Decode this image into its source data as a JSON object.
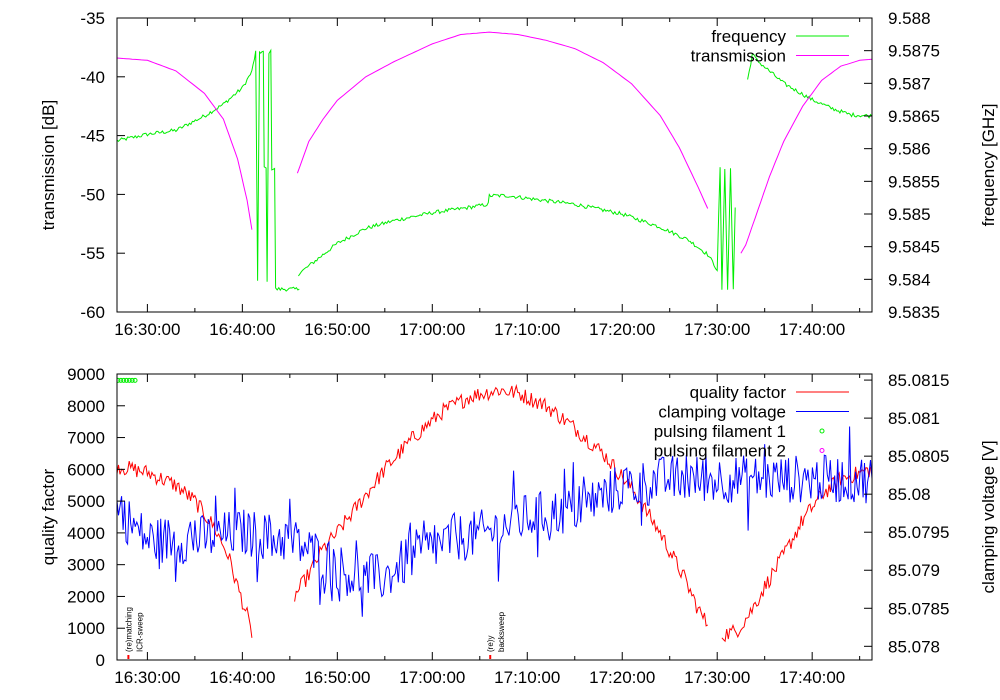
{
  "chart_data": [
    {
      "type": "line",
      "title": "",
      "xlabel": "",
      "ylabel": "transmission [dB]",
      "y2label": "frequency [GHz]",
      "x_unit": "minutes after 16:00",
      "xlim": [
        26.8,
        106.3
      ],
      "ylim": [
        -60,
        -35
      ],
      "y2lim": [
        9.5835,
        9.588
      ],
      "xticks": [
        "16:30:00",
        "16:40:00",
        "16:50:00",
        "17:00:00",
        "17:10:00",
        "17:20:00",
        "17:30:00",
        "17:40:00"
      ],
      "xtick_values": [
        30,
        40,
        50,
        60,
        70,
        80,
        90,
        100
      ],
      "yticks": [
        "-35",
        "-40",
        "-45",
        "-50",
        "-55",
        "-60"
      ],
      "ytick_values": [
        -35,
        -40,
        -45,
        -50,
        -55,
        -60
      ],
      "y2ticks": [
        "9.588",
        "9.5875",
        "9.587",
        "9.5865",
        "9.586",
        "9.5855",
        "9.585",
        "9.5845",
        "9.584",
        "9.5835"
      ],
      "y2tick_values": [
        9.588,
        9.5875,
        9.587,
        9.5865,
        9.586,
        9.5855,
        9.585,
        9.5845,
        9.584,
        9.5835
      ],
      "legend_position": "top-right",
      "series": [
        {
          "name": "frequency",
          "axis": "y2",
          "color": "#00ee00",
          "noise": 3e-05,
          "segments": [
            [
              [
                26.8,
                9.58612
              ],
              [
                30,
                9.58622
              ],
              [
                33,
                9.58628
              ],
              [
                36,
                9.5865
              ],
              [
                38,
                9.58668
              ],
              [
                40,
                9.58693
              ],
              [
                41,
                9.58718
              ],
              [
                41.4,
                9.58748
              ],
              [
                41.6,
                9.58395
              ],
              [
                41.8,
                9.58748
              ],
              [
                42.2,
                9.58748
              ],
              [
                42.3,
                9.5857
              ],
              [
                42.5,
                9.5857
              ],
              [
                42.6,
                9.58395
              ],
              [
                42.8,
                9.58748
              ],
              [
                43,
                9.58748
              ],
              [
                43.1,
                9.5857
              ],
              [
                43.4,
                9.5857
              ],
              [
                43.5,
                9.58385
              ],
              [
                44,
                9.58385
              ],
              [
                46,
                9.58385
              ]
            ],
            [
              [
                45.9,
                9.58408
              ],
              [
                48,
                9.58432
              ],
              [
                50,
                9.58455
              ],
              [
                53,
                9.58478
              ],
              [
                56,
                9.5849
              ],
              [
                60,
                9.58502
              ],
              [
                63,
                9.58508
              ],
              [
                65.9,
                9.58515
              ],
              [
                66,
                9.58528
              ],
              [
                68,
                9.58528
              ],
              [
                70,
                9.58524
              ],
              [
                75,
                9.58515
              ],
              [
                80,
                9.585
              ],
              [
                84,
                9.5848
              ],
              [
                87,
                9.5846
              ],
              [
                89,
                9.58438
              ],
              [
                90,
                9.58415
              ],
              [
                90.3,
                9.5857
              ],
              [
                90.5,
                9.58385
              ],
              [
                90.8,
                9.5857
              ],
              [
                91.1,
                9.58385
              ],
              [
                91.4,
                9.5857
              ],
              [
                91.7,
                9.58385
              ],
              [
                91.9,
                9.5851
              ]
            ],
            [
              [
                93.2,
                9.58705
              ],
              [
                93.7,
                9.58745
              ],
              [
                94.2,
                9.58735
              ],
              [
                95,
                9.58725
              ],
              [
                97,
                9.587
              ],
              [
                100,
                9.58675
              ],
              [
                102,
                9.58662
              ],
              [
                104,
                9.58652
              ],
              [
                106.3,
                9.5865
              ]
            ]
          ]
        },
        {
          "name": "transmission",
          "axis": "y",
          "color": "#ff00ff",
          "noise": 0,
          "segments": [
            [
              [
                26.8,
                -38.4
              ],
              [
                30,
                -38.6
              ],
              [
                33,
                -39.5
              ],
              [
                36,
                -41.4
              ],
              [
                38,
                -43.6
              ],
              [
                39.5,
                -47
              ],
              [
                40.5,
                -50.5
              ],
              [
                41,
                -53
              ]
            ],
            [
              [
                45.8,
                -48.2
              ],
              [
                47,
                -45.5
              ],
              [
                48.5,
                -43.6
              ],
              [
                50,
                -42.0
              ],
              [
                53,
                -40.0
              ],
              [
                56,
                -38.7
              ],
              [
                60,
                -37.2
              ],
              [
                63,
                -36.4
              ],
              [
                66,
                -36.2
              ],
              [
                69,
                -36.4
              ],
              [
                72,
                -36.9
              ],
              [
                75,
                -37.6
              ],
              [
                78,
                -38.8
              ],
              [
                81,
                -40.6
              ],
              [
                84,
                -43.3
              ],
              [
                86,
                -46
              ],
              [
                88,
                -49.4
              ],
              [
                89,
                -51.2
              ]
            ],
            [
              [
                92.5,
                -55.0
              ],
              [
                93,
                -54.3
              ],
              [
                94,
                -52
              ],
              [
                95.5,
                -48.5
              ],
              [
                97,
                -45.5
              ],
              [
                99,
                -42.5
              ],
              [
                101,
                -40.3
              ],
              [
                103,
                -39.1
              ],
              [
                105,
                -38.6
              ],
              [
                106.3,
                -38.5
              ]
            ]
          ]
        }
      ]
    },
    {
      "type": "line",
      "title": "",
      "xlabel": "",
      "ylabel": "quality factor",
      "y2label": "clamping voltage [V]",
      "x_unit": "minutes after 16:00",
      "xlim": [
        26.8,
        106.3
      ],
      "ylim": [
        0,
        9000
      ],
      "y2lim": [
        85.07782,
        85.08158
      ],
      "xticks": [
        "16:30:00",
        "16:40:00",
        "16:50:00",
        "17:00:00",
        "17:10:00",
        "17:20:00",
        "17:30:00",
        "17:40:00"
      ],
      "xtick_values": [
        30,
        40,
        50,
        60,
        70,
        80,
        90,
        100
      ],
      "yticks": [
        "9000",
        "8000",
        "7000",
        "6000",
        "5000",
        "4000",
        "3000",
        "2000",
        "1000",
        "0"
      ],
      "ytick_values": [
        9000,
        8000,
        7000,
        6000,
        5000,
        4000,
        3000,
        2000,
        1000,
        0
      ],
      "y2ticks": [
        "85.0815",
        "85.081",
        "85.0805",
        "85.08",
        "85.0795",
        "85.079",
        "85.0785",
        "85.078"
      ],
      "y2tick_values": [
        85.0815,
        85.081,
        85.0805,
        85.08,
        85.0795,
        85.079,
        85.0785,
        85.078
      ],
      "legend_position": "top-right",
      "series": [
        {
          "name": "quality factor",
          "axis": "y",
          "color": "#ff0000",
          "noise": 250,
          "segments": [
            [
              [
                26.8,
                6100
              ],
              [
                30,
                5900
              ],
              [
                33,
                5500
              ],
              [
                35,
                5000
              ],
              [
                37,
                4200
              ],
              [
                38.5,
                3300
              ],
              [
                39.5,
                2300
              ],
              [
                40.5,
                1400
              ],
              [
                41,
                700
              ]
            ],
            [
              [
                45.5,
                2000
              ],
              [
                47,
                2700
              ],
              [
                48.5,
                3500
              ],
              [
                50,
                4000
              ],
              [
                53,
                5200
              ],
              [
                55,
                6000
              ],
              [
                58,
                7000
              ],
              [
                61,
                7800
              ],
              [
                64,
                8300
              ],
              [
                67,
                8500
              ],
              [
                69,
                8400
              ],
              [
                72,
                8000
              ],
              [
                75,
                7300
              ],
              [
                78,
                6500
              ],
              [
                81,
                5400
              ],
              [
                84,
                4000
              ],
              [
                86.5,
                2600
              ],
              [
                88,
                1600
              ],
              [
                89,
                1100
              ]
            ],
            [
              [
                90.5,
                800
              ],
              [
                92,
                900
              ],
              [
                93.5,
                1500
              ],
              [
                95,
                2300
              ],
              [
                97,
                3300
              ],
              [
                99,
                4400
              ],
              [
                101,
                5200
              ],
              [
                103,
                5700
              ],
              [
                106.3,
                6000
              ]
            ]
          ]
        },
        {
          "name": "clamping voltage",
          "axis": "y2",
          "color": "#0000ff",
          "noise": 0.00032,
          "segments": [
            [
              [
                26.8,
                85.0798
              ],
              [
                30,
                85.0794
              ],
              [
                35,
                85.0794
              ],
              [
                40,
                85.0795
              ],
              [
                45,
                85.0794
              ],
              [
                48,
                85.0792
              ],
              [
                52,
                85.0789
              ],
              [
                55,
                85.0789
              ],
              [
                58,
                85.0792
              ],
              [
                62,
                85.0794
              ],
              [
                66,
                85.0795
              ],
              [
                70,
                85.0797
              ],
              [
                75,
                85.0798
              ],
              [
                80,
                85.0801
              ],
              [
                85,
                85.0802
              ],
              [
                95,
                85.0802
              ],
              [
                106.3,
                85.0802
              ]
            ]
          ]
        },
        {
          "name": "pulsing filament 1",
          "axis": "y",
          "color": "#00ee00",
          "marker": "point",
          "points": [
            [
              26.9,
              8800
            ],
            [
              27.2,
              8800
            ],
            [
              27.5,
              8800
            ],
            [
              27.8,
              8800
            ],
            [
              28.1,
              8800
            ],
            [
              28.4,
              8800
            ],
            [
              28.7,
              8800
            ]
          ]
        },
        {
          "name": "pulsing filament 2",
          "axis": "y",
          "color": "#ff00ff",
          "marker": "point",
          "points": []
        }
      ],
      "markers": [
        {
          "x": 28.0,
          "color": "#ff0000"
        },
        {
          "x": 66.1,
          "color": "#ff0000"
        }
      ],
      "annotations": [
        {
          "x": 28.0,
          "text": "(re)matching"
        },
        {
          "x": 28.4,
          "text": "ICR-sweep"
        },
        {
          "x": 66.1,
          "text": "(re)y"
        },
        {
          "x": 66.4,
          "text": "backsweep"
        }
      ]
    }
  ]
}
